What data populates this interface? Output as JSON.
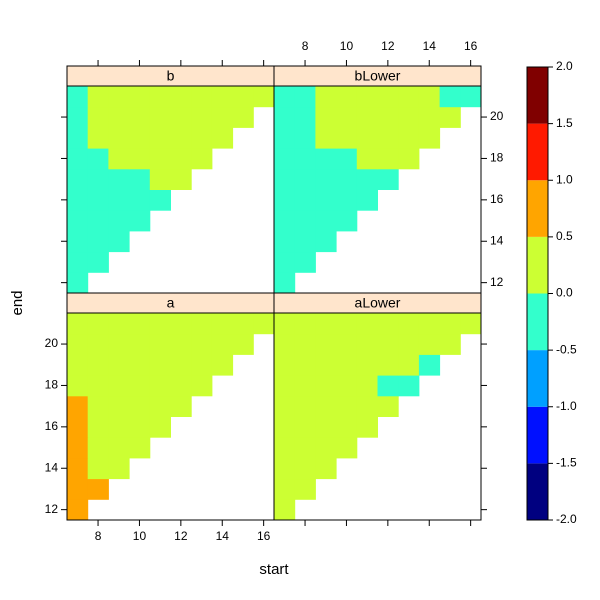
{
  "chart_data": {
    "type": "levelplot",
    "xlabel": "start",
    "ylabel": "end",
    "x": [
      7,
      8,
      9,
      10,
      11,
      12,
      13,
      14,
      15,
      16
    ],
    "y": [
      12,
      13,
      14,
      15,
      16,
      17,
      18,
      19,
      20,
      21
    ],
    "xlim": [
      6.5,
      16.5
    ],
    "ylim": [
      11.5,
      21.5
    ],
    "xticks": [
      8,
      10,
      12,
      14,
      16
    ],
    "yticks": [
      12,
      14,
      16,
      18,
      20
    ],
    "panels": [
      {
        "name": "a",
        "z": [
          [
            0.75,
            null,
            null,
            null,
            null,
            null,
            null,
            null,
            null,
            null
          ],
          [
            0.75,
            0.75,
            null,
            null,
            null,
            null,
            null,
            null,
            null,
            null
          ],
          [
            0.75,
            0.25,
            0.25,
            null,
            null,
            null,
            null,
            null,
            null,
            null
          ],
          [
            0.75,
            0.25,
            0.25,
            0.25,
            null,
            null,
            null,
            null,
            null,
            null
          ],
          [
            0.75,
            0.25,
            0.25,
            0.25,
            0.25,
            null,
            null,
            null,
            null,
            null
          ],
          [
            0.75,
            0.25,
            0.25,
            0.25,
            0.25,
            0.25,
            null,
            null,
            null,
            null
          ],
          [
            0.25,
            0.25,
            0.25,
            0.25,
            0.25,
            0.25,
            0.25,
            null,
            null,
            null
          ],
          [
            0.25,
            0.25,
            0.25,
            0.25,
            0.25,
            0.25,
            0.25,
            0.25,
            null,
            null
          ],
          [
            0.25,
            0.25,
            0.25,
            0.25,
            0.25,
            0.25,
            0.25,
            0.25,
            0.25,
            null
          ],
          [
            0.25,
            0.25,
            0.25,
            0.25,
            0.25,
            0.25,
            0.25,
            0.25,
            0.25,
            0.25
          ]
        ]
      },
      {
        "name": "aLower",
        "z": [
          [
            0.25,
            null,
            null,
            null,
            null,
            null,
            null,
            null,
            null,
            null
          ],
          [
            0.25,
            0.25,
            null,
            null,
            null,
            null,
            null,
            null,
            null,
            null
          ],
          [
            0.25,
            0.25,
            0.25,
            null,
            null,
            null,
            null,
            null,
            null,
            null
          ],
          [
            0.25,
            0.25,
            0.25,
            0.25,
            null,
            null,
            null,
            null,
            null,
            null
          ],
          [
            0.25,
            0.25,
            0.25,
            0.25,
            0.25,
            null,
            null,
            null,
            null,
            null
          ],
          [
            0.25,
            0.25,
            0.25,
            0.25,
            0.25,
            0.25,
            null,
            null,
            null,
            null
          ],
          [
            0.25,
            0.25,
            0.25,
            0.25,
            0.25,
            -0.25,
            -0.25,
            null,
            null,
            null
          ],
          [
            0.25,
            0.25,
            0.25,
            0.25,
            0.25,
            0.25,
            0.25,
            -0.25,
            null,
            null
          ],
          [
            0.25,
            0.25,
            0.25,
            0.25,
            0.25,
            0.25,
            0.25,
            0.25,
            0.25,
            null
          ],
          [
            0.25,
            0.25,
            0.25,
            0.25,
            0.25,
            0.25,
            0.25,
            0.25,
            0.25,
            0.25
          ]
        ]
      },
      {
        "name": "b",
        "z": [
          [
            -0.25,
            null,
            null,
            null,
            null,
            null,
            null,
            null,
            null,
            null
          ],
          [
            -0.25,
            -0.25,
            null,
            null,
            null,
            null,
            null,
            null,
            null,
            null
          ],
          [
            -0.25,
            -0.25,
            -0.25,
            null,
            null,
            null,
            null,
            null,
            null,
            null
          ],
          [
            -0.25,
            -0.25,
            -0.25,
            -0.25,
            null,
            null,
            null,
            null,
            null,
            null
          ],
          [
            -0.25,
            -0.25,
            -0.25,
            -0.25,
            -0.25,
            null,
            null,
            null,
            null,
            null
          ],
          [
            -0.25,
            -0.25,
            -0.25,
            -0.25,
            0.25,
            0.25,
            null,
            null,
            null,
            null
          ],
          [
            -0.25,
            -0.25,
            0.25,
            0.25,
            0.25,
            0.25,
            0.25,
            null,
            null,
            null
          ],
          [
            -0.25,
            0.25,
            0.25,
            0.25,
            0.25,
            0.25,
            0.25,
            0.25,
            null,
            null
          ],
          [
            -0.25,
            0.25,
            0.25,
            0.25,
            0.25,
            0.25,
            0.25,
            0.25,
            0.25,
            null
          ],
          [
            -0.25,
            0.25,
            0.25,
            0.25,
            0.25,
            0.25,
            0.25,
            0.25,
            0.25,
            0.25
          ]
        ]
      },
      {
        "name": "bLower",
        "z": [
          [
            -0.25,
            null,
            null,
            null,
            null,
            null,
            null,
            null,
            null,
            null
          ],
          [
            -0.25,
            -0.25,
            null,
            null,
            null,
            null,
            null,
            null,
            null,
            null
          ],
          [
            -0.25,
            -0.25,
            -0.25,
            null,
            null,
            null,
            null,
            null,
            null,
            null
          ],
          [
            -0.25,
            -0.25,
            -0.25,
            -0.25,
            null,
            null,
            null,
            null,
            null,
            null
          ],
          [
            -0.25,
            -0.25,
            -0.25,
            -0.25,
            -0.25,
            null,
            null,
            null,
            null,
            null
          ],
          [
            -0.25,
            -0.25,
            -0.25,
            -0.25,
            -0.25,
            -0.25,
            null,
            null,
            null,
            null
          ],
          [
            -0.25,
            -0.25,
            -0.25,
            -0.25,
            0.25,
            0.25,
            0.25,
            null,
            null,
            null
          ],
          [
            -0.25,
            -0.25,
            0.25,
            0.25,
            0.25,
            0.25,
            0.25,
            0.25,
            null,
            null
          ],
          [
            -0.25,
            -0.25,
            0.25,
            0.25,
            0.25,
            0.25,
            0.25,
            0.25,
            0.25,
            null
          ],
          [
            -0.25,
            -0.25,
            0.25,
            0.25,
            0.25,
            0.25,
            0.25,
            0.25,
            -0.25,
            -0.25
          ]
        ]
      }
    ],
    "strip_color": "#FFE5CC",
    "colorkey": {
      "zlim": [
        -2,
        2
      ],
      "ticks": [
        {
          "value": -2,
          "label": "-2.0"
        },
        {
          "value": -1.5,
          "label": "-1.5"
        },
        {
          "value": -1,
          "label": "-1.0"
        },
        {
          "value": -0.5,
          "label": "-0.5"
        },
        {
          "value": 0,
          "label": "0.0"
        },
        {
          "value": 0.5,
          "label": "0.5"
        },
        {
          "value": 1,
          "label": "1.0"
        },
        {
          "value": 1.5,
          "label": "1.5"
        },
        {
          "value": 2,
          "label": "2.0"
        }
      ],
      "colors": [
        "#000080",
        "#0010FF",
        "#00A0FF",
        "#33FFCC",
        "#CCFF33",
        "#FFA500",
        "#FF1A00",
        "#800000"
      ]
    }
  }
}
